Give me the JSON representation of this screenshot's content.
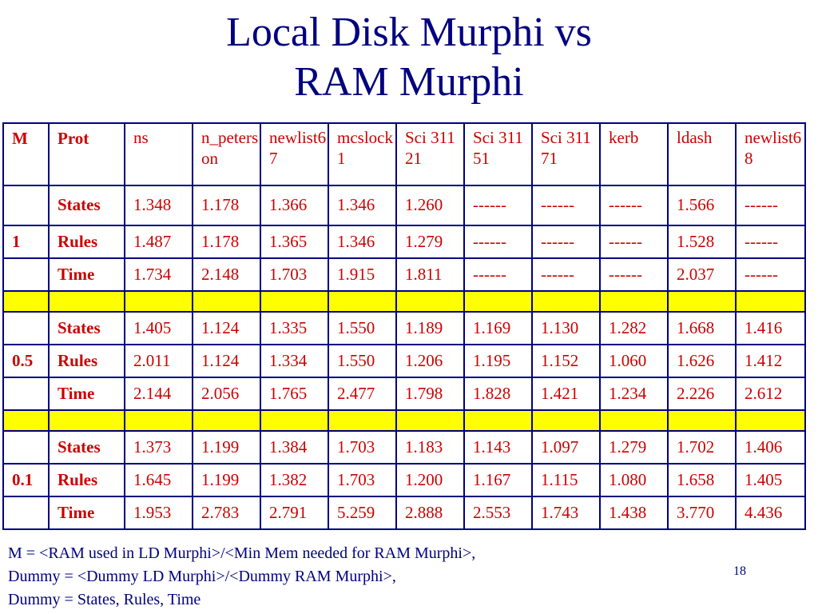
{
  "title": {
    "line1": "Local Disk Murphi vs",
    "line2": "RAM Murphi"
  },
  "table": {
    "headers": [
      "M",
      "Prot",
      "ns",
      "n_peterson",
      "newlist6 7",
      "mcslock1",
      "Sci 31121",
      "Sci 31151",
      "Sci 31171",
      "kerb",
      "ldash",
      "newlist6 8"
    ],
    "groups": [
      {
        "m": "1",
        "rows": [
          {
            "label": "States",
            "values": [
              "1.348",
              "1.178",
              "1.366",
              "1.346",
              "1.260",
              "------",
              "------",
              "------",
              "1.566",
              "------"
            ]
          },
          {
            "label": "Rules",
            "values": [
              "1.487",
              "1.178",
              "1.365",
              "1.346",
              "1.279",
              "------",
              "------",
              "------",
              "1.528",
              "------"
            ]
          },
          {
            "label": "Time",
            "values": [
              "1.734",
              "2.148",
              "1.703",
              "1.915",
              "1.811",
              "------",
              "------",
              "------",
              "2.037",
              "------"
            ]
          }
        ]
      },
      {
        "m": "0.5",
        "rows": [
          {
            "label": "States",
            "values": [
              "1.405",
              "1.124",
              "1.335",
              "1.550",
              "1.189",
              "1.169",
              "1.130",
              "1.282",
              "1.668",
              "1.416"
            ]
          },
          {
            "label": "Rules",
            "values": [
              "2.011",
              "1.124",
              "1.334",
              "1.550",
              "1.206",
              "1.195",
              "1.152",
              "1.060",
              "1.626",
              "1.412"
            ]
          },
          {
            "label": "Time",
            "values": [
              "2.144",
              "2.056",
              "1.765",
              "2.477",
              "1.798",
              "1.828",
              "1.421",
              "1.234",
              "2.226",
              "2.612"
            ]
          }
        ]
      },
      {
        "m": "0.1",
        "rows": [
          {
            "label": "States",
            "values": [
              "1.373",
              "1.199",
              "1.384",
              "1.703",
              "1.183",
              "1.143",
              "1.097",
              "1.279",
              "1.702",
              "1.406"
            ]
          },
          {
            "label": "Rules",
            "values": [
              "1.645",
              "1.199",
              "1.382",
              "1.703",
              "1.200",
              "1.167",
              "1.115",
              "1.080",
              "1.658",
              "1.405"
            ]
          },
          {
            "label": "Time",
            "values": [
              "1.953",
              "2.783",
              "2.791",
              "5.259",
              "2.888",
              "2.553",
              "1.743",
              "1.438",
              "3.770",
              "4.436"
            ]
          }
        ]
      }
    ]
  },
  "footnote": [
    "M = <RAM used in LD Murphi>/<Min Mem needed for RAM Murphi>,",
    "Dummy = <Dummy LD Murphi>/<Dummy RAM Murphi>,",
    "Dummy = States, Rules, Time"
  ],
  "page_number": "18",
  "colors": {
    "title": "#000080",
    "label": "#cc0000",
    "value": "#000080",
    "separator": "#ffff00",
    "border": "#000080"
  }
}
